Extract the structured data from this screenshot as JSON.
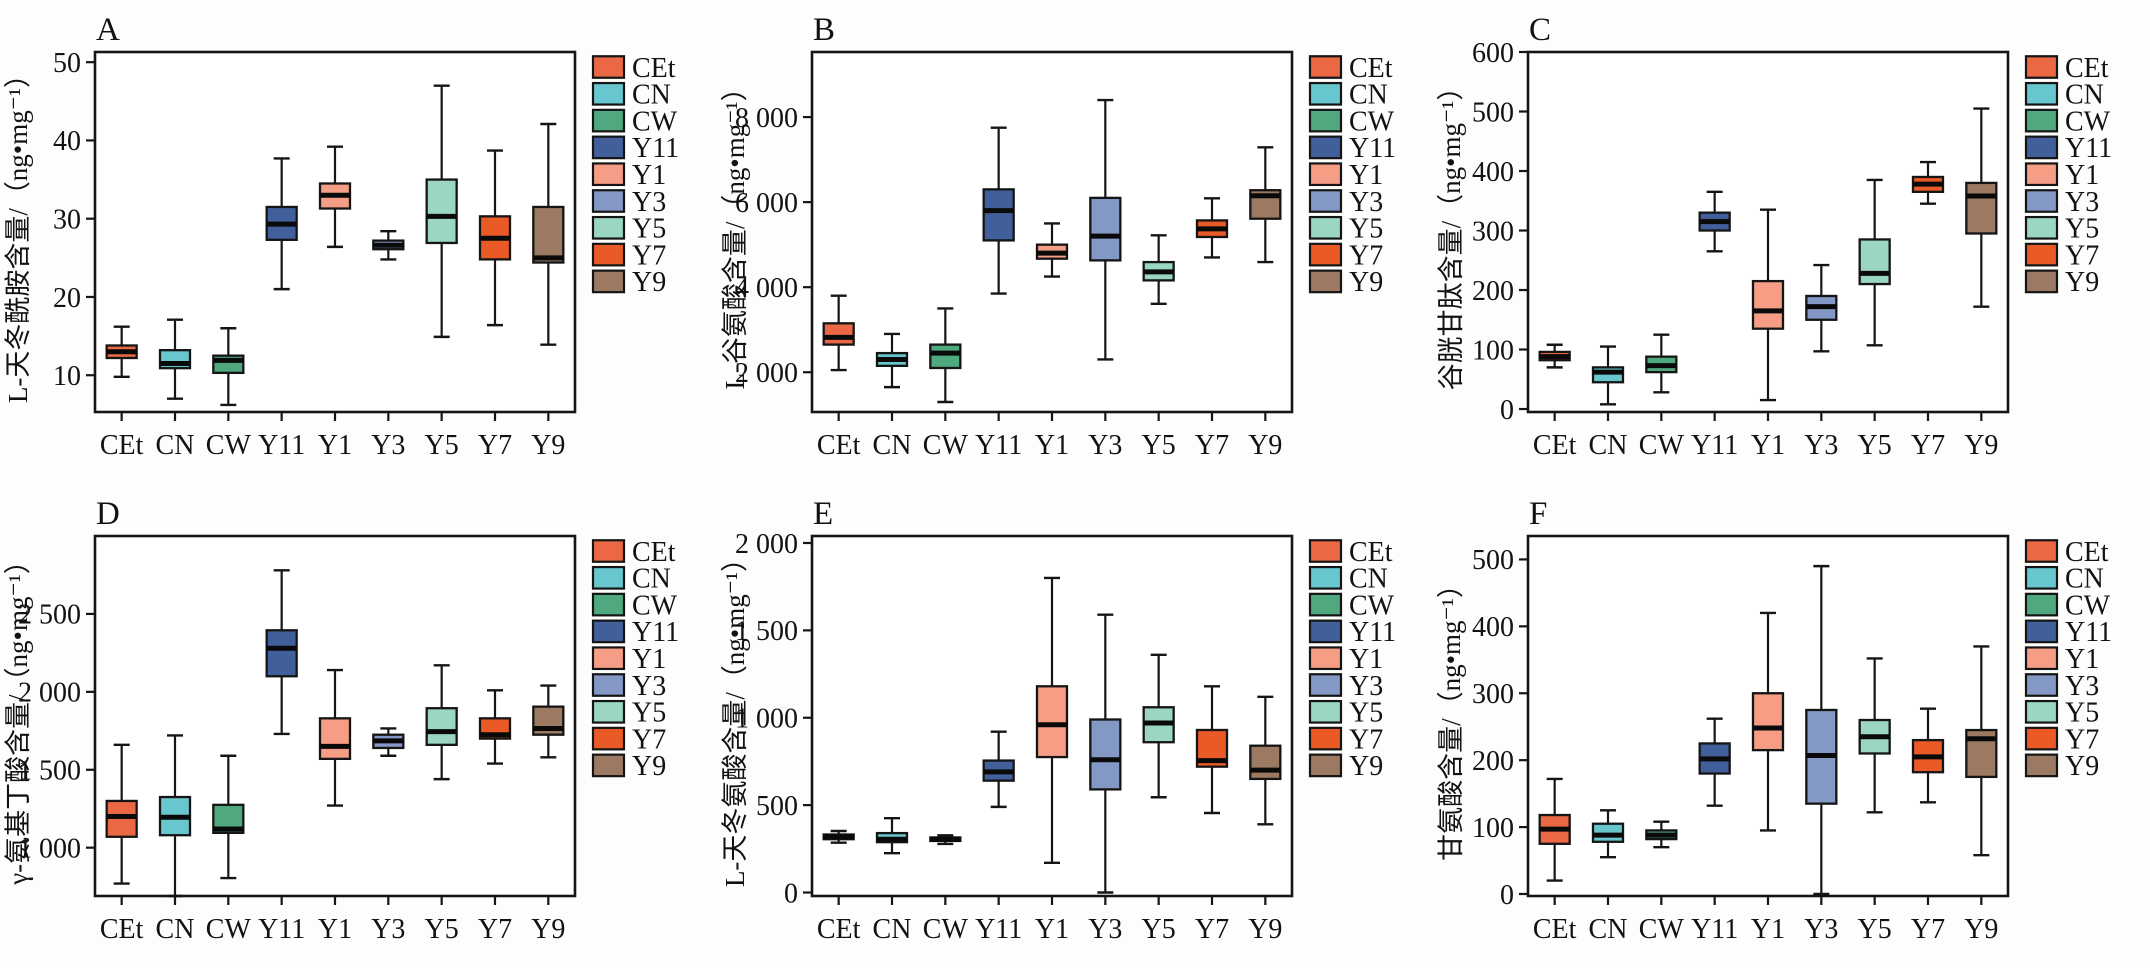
{
  "figure": {
    "description": "Six box-plot panels (A–F) of amino acid contents across tea samples",
    "groups": [
      "CEt",
      "CN",
      "CW",
      "Y11",
      "Y1",
      "Y3",
      "Y5",
      "Y7",
      "Y9"
    ],
    "colors": {
      "CEt": "#EB6845",
      "CN": "#67C6CE",
      "CW": "#4FA87E",
      "Y11": "#41609B",
      "Y1": "#F69D86",
      "Y3": "#8498C6",
      "Y5": "#9AD6C1",
      "Y7": "#EA5A26",
      "Y9": "#9B7A61"
    },
    "axis_color": "#151515",
    "legend_position": "right"
  },
  "chart_data": [
    {
      "type": "box",
      "panel_label": "A",
      "title": "",
      "xlabel": "",
      "ylabel": "L-天冬酰胺含量/（ng•mg⁻¹）",
      "ylim": [
        5.3,
        51.3
      ],
      "yticks": [
        {
          "v": 10,
          "t": "10"
        },
        {
          "v": 20,
          "t": "20"
        },
        {
          "v": 30,
          "t": "30"
        },
        {
          "v": 40,
          "t": "40"
        },
        {
          "v": 50,
          "t": "50"
        }
      ],
      "categories": [
        "CEt",
        "CN",
        "CW",
        "Y11",
        "Y1",
        "Y3",
        "Y5",
        "Y7",
        "Y9"
      ],
      "legend": [
        "CEt",
        "CN",
        "CW",
        "Y11",
        "Y1",
        "Y3",
        "Y5",
        "Y7",
        "Y9"
      ],
      "boxes": [
        {
          "group": "CEt",
          "min": 9.8,
          "q1": 12.2,
          "med": 13.0,
          "q3": 13.8,
          "max": 16.2
        },
        {
          "group": "CN",
          "min": 7.0,
          "q1": 10.9,
          "med": 11.5,
          "q3": 13.2,
          "max": 17.1
        },
        {
          "group": "CW",
          "min": 6.2,
          "q1": 10.3,
          "med": 11.9,
          "q3": 12.5,
          "max": 16.0
        },
        {
          "group": "Y11",
          "min": 21.0,
          "q1": 27.3,
          "med": 29.3,
          "q3": 31.5,
          "max": 37.7
        },
        {
          "group": "Y1",
          "min": 26.4,
          "q1": 31.3,
          "med": 33.0,
          "q3": 34.5,
          "max": 39.2
        },
        {
          "group": "Y3",
          "min": 24.8,
          "q1": 26.1,
          "med": 26.6,
          "q3": 27.2,
          "max": 28.4
        },
        {
          "group": "Y5",
          "min": 14.9,
          "q1": 26.9,
          "med": 30.3,
          "q3": 35.0,
          "max": 47.0
        },
        {
          "group": "Y7",
          "min": 16.4,
          "q1": 24.8,
          "med": 27.5,
          "q3": 30.3,
          "max": 38.7
        },
        {
          "group": "Y9",
          "min": 13.9,
          "q1": 24.4,
          "med": 25.0,
          "q3": 31.5,
          "max": 42.1
        }
      ]
    },
    {
      "type": "box",
      "panel_label": "B",
      "title": "",
      "xlabel": "",
      "ylabel": "L-谷氨酸含量/（ng•mg⁻¹）",
      "ylim": [
        1065,
        9530
      ],
      "yticks": [
        {
          "v": 2000,
          "t": "2 000"
        },
        {
          "v": 4000,
          "t": "4 000"
        },
        {
          "v": 6000,
          "t": "6 000"
        },
        {
          "v": 8000,
          "t": "8 000"
        }
      ],
      "categories": [
        "CEt",
        "CN",
        "CW",
        "Y11",
        "Y1",
        "Y3",
        "Y5",
        "Y7",
        "Y9"
      ],
      "legend": [
        "CEt",
        "CN",
        "CW",
        "Y11",
        "Y1",
        "Y3",
        "Y5",
        "Y7",
        "Y9"
      ],
      "boxes": [
        {
          "group": "CEt",
          "min": 2050,
          "q1": 2650,
          "med": 2820,
          "q3": 3150,
          "max": 3800
        },
        {
          "group": "CN",
          "min": 1650,
          "q1": 2150,
          "med": 2300,
          "q3": 2450,
          "max": 2900
        },
        {
          "group": "CW",
          "min": 1300,
          "q1": 2100,
          "med": 2450,
          "q3": 2650,
          "max": 3500
        },
        {
          "group": "Y11",
          "min": 3850,
          "q1": 5100,
          "med": 5800,
          "q3": 6300,
          "max": 7750
        },
        {
          "group": "Y1",
          "min": 4250,
          "q1": 4670,
          "med": 4800,
          "q3": 5000,
          "max": 5500
        },
        {
          "group": "Y3",
          "min": 2300,
          "q1": 4630,
          "med": 5200,
          "q3": 6100,
          "max": 8400
        },
        {
          "group": "Y5",
          "min": 3610,
          "q1": 4160,
          "med": 4360,
          "q3": 4590,
          "max": 5220
        },
        {
          "group": "Y7",
          "min": 4700,
          "q1": 5180,
          "med": 5370,
          "q3": 5570,
          "max": 6090
        },
        {
          "group": "Y9",
          "min": 4590,
          "q1": 5610,
          "med": 6150,
          "q3": 6280,
          "max": 7290
        }
      ]
    },
    {
      "type": "box",
      "panel_label": "C",
      "title": "",
      "xlabel": "",
      "ylabel": "谷胱甘肽含量/（ng•mg⁻¹）",
      "ylim": [
        -5,
        600
      ],
      "yticks": [
        {
          "v": 0,
          "t": "0"
        },
        {
          "v": 100,
          "t": "100"
        },
        {
          "v": 200,
          "t": "200"
        },
        {
          "v": 300,
          "t": "300"
        },
        {
          "v": 400,
          "t": "400"
        },
        {
          "v": 500,
          "t": "500"
        },
        {
          "v": 600,
          "t": "600"
        }
      ],
      "categories": [
        "CEt",
        "CN",
        "CW",
        "Y11",
        "Y1",
        "Y3",
        "Y5",
        "Y7",
        "Y9"
      ],
      "legend": [
        "CEt",
        "CN",
        "CW",
        "Y11",
        "Y1",
        "Y3",
        "Y5",
        "Y7",
        "Y9"
      ],
      "boxes": [
        {
          "group": "CEt",
          "min": 70,
          "q1": 82,
          "med": 88,
          "q3": 96,
          "max": 108
        },
        {
          "group": "CN",
          "min": 8,
          "q1": 45,
          "med": 62,
          "q3": 70,
          "max": 105
        },
        {
          "group": "CW",
          "min": 28,
          "q1": 62,
          "med": 73,
          "q3": 88,
          "max": 125
        },
        {
          "group": "Y11",
          "min": 265,
          "q1": 300,
          "med": 315,
          "q3": 330,
          "max": 365
        },
        {
          "group": "Y1",
          "min": 15,
          "q1": 135,
          "med": 165,
          "q3": 215,
          "max": 335
        },
        {
          "group": "Y3",
          "min": 97,
          "q1": 150,
          "med": 172,
          "q3": 190,
          "max": 242
        },
        {
          "group": "Y5",
          "min": 107,
          "q1": 210,
          "med": 228,
          "q3": 285,
          "max": 385
        },
        {
          "group": "Y7",
          "min": 345,
          "q1": 365,
          "med": 378,
          "q3": 390,
          "max": 415
        },
        {
          "group": "Y9",
          "min": 172,
          "q1": 295,
          "med": 358,
          "q3": 380,
          "max": 505
        }
      ]
    },
    {
      "type": "box",
      "panel_label": "D",
      "title": "",
      "xlabel": "",
      "ylabel": "γ-氨基丁酸含量/（ng•mg⁻¹）",
      "ylim": [
        690,
        3000
      ],
      "yticks": [
        {
          "v": 1000,
          "t": "1 000"
        },
        {
          "v": 1500,
          "t": "1 500"
        },
        {
          "v": 2000,
          "t": "2 000"
        },
        {
          "v": 2500,
          "t": "2 500"
        }
      ],
      "categories": [
        "CEt",
        "CN",
        "CW",
        "Y11",
        "Y1",
        "Y3",
        "Y5",
        "Y7",
        "Y9"
      ],
      "legend": [
        "CEt",
        "CN",
        "CW",
        "Y11",
        "Y1",
        "Y3",
        "Y5",
        "Y7",
        "Y9"
      ],
      "boxes": [
        {
          "group": "CEt",
          "min": 770,
          "q1": 1070,
          "med": 1200,
          "q3": 1300,
          "max": 1660
        },
        {
          "group": "CN",
          "min": 690,
          "q1": 1080,
          "med": 1195,
          "q3": 1325,
          "max": 1720
        },
        {
          "group": "CW",
          "min": 805,
          "q1": 1095,
          "med": 1120,
          "q3": 1275,
          "max": 1590
        },
        {
          "group": "Y11",
          "min": 1730,
          "q1": 2100,
          "med": 2280,
          "q3": 2395,
          "max": 2780
        },
        {
          "group": "Y1",
          "min": 1270,
          "q1": 1570,
          "med": 1650,
          "q3": 1830,
          "max": 2140
        },
        {
          "group": "Y3",
          "min": 1590,
          "q1": 1640,
          "med": 1685,
          "q3": 1725,
          "max": 1765
        },
        {
          "group": "Y5",
          "min": 1440,
          "q1": 1660,
          "med": 1745,
          "q3": 1895,
          "max": 2170
        },
        {
          "group": "Y7",
          "min": 1540,
          "q1": 1700,
          "med": 1725,
          "q3": 1830,
          "max": 2010
        },
        {
          "group": "Y9",
          "min": 1580,
          "q1": 1725,
          "med": 1765,
          "q3": 1905,
          "max": 2040
        }
      ]
    },
    {
      "type": "box",
      "panel_label": "E",
      "title": "",
      "xlabel": "",
      "ylabel": "L-天冬氨酸含量/（ng•mg⁻¹）",
      "ylim": [
        -20,
        2040
      ],
      "yticks": [
        {
          "v": 0,
          "t": "0"
        },
        {
          "v": 500,
          "t": "500"
        },
        {
          "v": 1000,
          "t": "1 000"
        },
        {
          "v": 1500,
          "t": "1 500"
        },
        {
          "v": 2000,
          "t": "2 000"
        }
      ],
      "categories": [
        "CEt",
        "CN",
        "CW",
        "Y11",
        "Y1",
        "Y3",
        "Y5",
        "Y7",
        "Y9"
      ],
      "legend": [
        "CEt",
        "CN",
        "CW",
        "Y11",
        "Y1",
        "Y3",
        "Y5",
        "Y7",
        "Y9"
      ],
      "boxes": [
        {
          "group": "CEt",
          "min": 285,
          "q1": 305,
          "med": 318,
          "q3": 332,
          "max": 352
        },
        {
          "group": "CN",
          "min": 225,
          "q1": 288,
          "med": 305,
          "q3": 340,
          "max": 425
        },
        {
          "group": "CW",
          "min": 278,
          "q1": 295,
          "med": 305,
          "q3": 315,
          "max": 327
        },
        {
          "group": "Y11",
          "min": 490,
          "q1": 640,
          "med": 690,
          "q3": 755,
          "max": 920
        },
        {
          "group": "Y1",
          "min": 170,
          "q1": 775,
          "med": 960,
          "q3": 1180,
          "max": 1800
        },
        {
          "group": "Y3",
          "min": 0,
          "q1": 590,
          "med": 760,
          "q3": 990,
          "max": 1590
        },
        {
          "group": "Y5",
          "min": 545,
          "q1": 860,
          "med": 970,
          "q3": 1060,
          "max": 1360
        },
        {
          "group": "Y7",
          "min": 455,
          "q1": 720,
          "med": 755,
          "q3": 930,
          "max": 1180
        },
        {
          "group": "Y9",
          "min": 390,
          "q1": 650,
          "med": 700,
          "q3": 840,
          "max": 1120
        }
      ]
    },
    {
      "type": "box",
      "panel_label": "F",
      "title": "",
      "xlabel": "",
      "ylabel": "甘氨酸含量/（ng•mg⁻¹）",
      "ylim": [
        -3,
        535
      ],
      "yticks": [
        {
          "v": 0,
          "t": "0"
        },
        {
          "v": 100,
          "t": "100"
        },
        {
          "v": 200,
          "t": "200"
        },
        {
          "v": 300,
          "t": "300"
        },
        {
          "v": 400,
          "t": "400"
        },
        {
          "v": 500,
          "t": "500"
        }
      ],
      "categories": [
        "CEt",
        "CN",
        "CW",
        "Y11",
        "Y1",
        "Y3",
        "Y5",
        "Y7",
        "Y9"
      ],
      "legend": [
        "CEt",
        "CN",
        "CW",
        "Y11",
        "Y1",
        "Y3",
        "Y5",
        "Y7",
        "Y9"
      ],
      "boxes": [
        {
          "group": "CEt",
          "min": 20,
          "q1": 75,
          "med": 97,
          "q3": 118,
          "max": 172
        },
        {
          "group": "CN",
          "min": 55,
          "q1": 78,
          "med": 88,
          "q3": 105,
          "max": 125
        },
        {
          "group": "CW",
          "min": 70,
          "q1": 82,
          "med": 88,
          "q3": 95,
          "max": 108
        },
        {
          "group": "Y11",
          "min": 132,
          "q1": 180,
          "med": 202,
          "q3": 225,
          "max": 262
        },
        {
          "group": "Y1",
          "min": 95,
          "q1": 215,
          "med": 248,
          "q3": 300,
          "max": 420
        },
        {
          "group": "Y3",
          "min": 0,
          "q1": 135,
          "med": 207,
          "q3": 275,
          "max": 490
        },
        {
          "group": "Y5",
          "min": 122,
          "q1": 210,
          "med": 235,
          "q3": 260,
          "max": 352
        },
        {
          "group": "Y7",
          "min": 137,
          "q1": 182,
          "med": 205,
          "q3": 230,
          "max": 277
        },
        {
          "group": "Y9",
          "min": 58,
          "q1": 175,
          "med": 232,
          "q3": 245,
          "max": 370
        }
      ]
    }
  ]
}
